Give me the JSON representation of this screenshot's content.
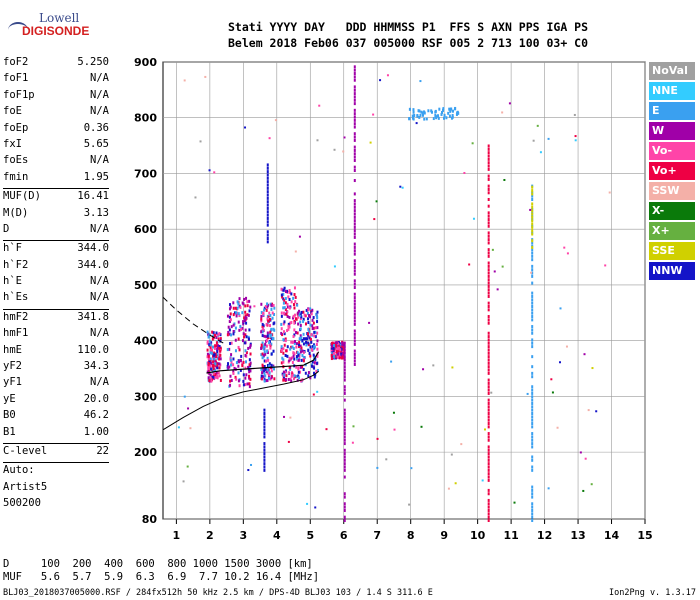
{
  "logo": {
    "line1": "Lowell",
    "line2": "DIGISONDE"
  },
  "header": {
    "line1": "Stati YYYY DAY   DDD HHMMSS P1  FFS S AXN PPS IGA PS",
    "line2": "Belem 2018 Feb06 037 005000 RSF 005 2 713 100 03+ C0"
  },
  "params_group1": [
    {
      "name": "foF2",
      "value": "5.250"
    },
    {
      "name": "foF1",
      "value": "N/A"
    },
    {
      "name": "foF1p",
      "value": "N/A"
    },
    {
      "name": "foE",
      "value": "N/A"
    },
    {
      "name": "foEp",
      "value": "0.36"
    },
    {
      "name": "fxI",
      "value": "5.65"
    },
    {
      "name": "foEs",
      "value": "N/A"
    },
    {
      "name": "fmin",
      "value": "1.95"
    }
  ],
  "params_group2": [
    {
      "name": "MUF(D)",
      "value": "16.41"
    },
    {
      "name": "M(D)",
      "value": "3.13"
    },
    {
      "name": "D",
      "value": "N/A"
    }
  ],
  "params_group3": [
    {
      "name": "h`F",
      "value": "344.0"
    },
    {
      "name": "h`F2",
      "value": "344.0"
    },
    {
      "name": "h`E",
      "value": "N/A"
    },
    {
      "name": "h`Es",
      "value": "N/A"
    }
  ],
  "params_group4": [
    {
      "name": "hmF2",
      "value": "341.8"
    },
    {
      "name": "hmF1",
      "value": "N/A"
    },
    {
      "name": "hmE",
      "value": "110.0"
    },
    {
      "name": "yF2",
      "value": "34.3"
    },
    {
      "name": "yF1",
      "value": "N/A"
    },
    {
      "name": "yE",
      "value": "20.0"
    },
    {
      "name": "B0",
      "value": "46.2"
    },
    {
      "name": "B1",
      "value": "1.00"
    }
  ],
  "clevel": {
    "name": "C-level",
    "value": "22"
  },
  "auto": {
    "line1": "Auto:",
    "line2": "Artist5",
    "line3": "500200"
  },
  "bottom": {
    "d_line": "D     100  200  400  600  800 1000 1500 3000 [km]",
    "muf_line": "MUF   5.6  5.7  5.9  6.3  6.9  7.7 10.2 16.4 [MHz]"
  },
  "footer": {
    "left": "BLJ03_2018037005000.RSF / 284fx512h 50 kHz 2.5 km / DPS-4D BLJ03 103 / 1.4 S 311.6 E",
    "right": "Ion2Png v. 1.3.17"
  },
  "legend": [
    {
      "label": "NoVal",
      "color": "#a0a0a0"
    },
    {
      "label": "NNE",
      "color": "#33ccff"
    },
    {
      "label": "E",
      "color": "#3aa0f0"
    },
    {
      "label": "W",
      "color": "#a000a8"
    },
    {
      "label": "Vo-",
      "color": "#ff44a8"
    },
    {
      "label": "Vo+",
      "color": "#ee0044"
    },
    {
      "label": "SSW",
      "color": "#f4b0a8"
    },
    {
      "label": "X-",
      "color": "#0a7a0a"
    },
    {
      "label": "X+",
      "color": "#66b040"
    },
    {
      "label": "SSE",
      "color": "#d0d000"
    },
    {
      "label": "NNW",
      "color": "#1414c8"
    }
  ],
  "chart_data": {
    "type": "scatter",
    "xlim": [
      0.6,
      15
    ],
    "ylim": [
      80,
      900
    ],
    "x_ticks": [
      1,
      2,
      3,
      4,
      5,
      6,
      7,
      8,
      9,
      10,
      11,
      12,
      13,
      14,
      15
    ],
    "y_ticks": [
      80,
      200,
      300,
      400,
      500,
      600,
      700,
      800,
      900
    ],
    "grid": true,
    "profile_solid": {
      "x": [
        0.6,
        1.2,
        1.8,
        2.4,
        3.0,
        3.6,
        4.2,
        4.8,
        5.1,
        5.25
      ],
      "y": [
        240,
        262,
        282,
        298,
        308,
        315,
        322,
        330,
        338,
        345
      ]
    },
    "profile_dashed": {
      "x": [
        0.6,
        1.0,
        1.5,
        2.0,
        2.5
      ],
      "y": [
        478,
        455,
        430,
        410,
        392
      ]
    },
    "trace_solid": {
      "x": [
        1.9,
        2.3,
        2.8,
        3.3,
        3.8,
        4.3,
        4.8,
        5.1,
        5.25
      ],
      "y": [
        342,
        346,
        348,
        350,
        352,
        354,
        356,
        365,
        380
      ]
    },
    "clusters": [
      {
        "x": [
          1.9,
          2.3
        ],
        "y": [
          330,
          420
        ],
        "color": "#ee0044"
      },
      {
        "x": [
          2.5,
          3.2
        ],
        "y": [
          320,
          480
        ],
        "color": "#a000a8"
      },
      {
        "x": [
          3.5,
          3.9
        ],
        "y": [
          330,
          470
        ],
        "color": "#3aa0f0"
      },
      {
        "x": [
          4.1,
          4.6
        ],
        "y": [
          330,
          500
        ],
        "color": "#ff44a8"
      },
      {
        "x": [
          4.6,
          5.2
        ],
        "y": [
          330,
          460
        ],
        "color": "#1414c8"
      },
      {
        "x": [
          5.6,
          6.0
        ],
        "y": [
          370,
          400
        ],
        "color": "#ee0044"
      }
    ],
    "vertical_traces": [
      {
        "x": 6.0,
        "y": [
          80,
          400
        ],
        "color": "#a000a8"
      },
      {
        "x": 6.3,
        "y": [
          360,
          900
        ],
        "color": "#a000a8"
      },
      {
        "x": 10.3,
        "y": [
          80,
          760
        ],
        "color": "#ee0044"
      },
      {
        "x": 11.6,
        "y": [
          80,
          690
        ],
        "color": "#3aa0f0"
      },
      {
        "x": 11.6,
        "y": [
          570,
          680
        ],
        "color": "#d0d000"
      },
      {
        "x": 3.7,
        "y": [
          580,
          720
        ],
        "color": "#1414c8"
      },
      {
        "x": 3.6,
        "y": [
          170,
          280
        ],
        "color": "#1414c8"
      }
    ],
    "echo_band": {
      "x": [
        7.9,
        9.4
      ],
      "y": [
        800,
        820
      ],
      "color": "#3aa0f0"
    }
  }
}
